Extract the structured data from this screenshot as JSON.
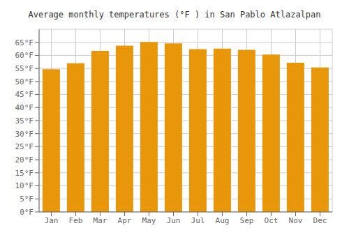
{
  "chart_data": {
    "type": "bar",
    "title": "Average monthly temperatures (°F ) in San Pablo Atlazalpan",
    "categories": [
      "Jan",
      "Feb",
      "Mar",
      "Apr",
      "May",
      "Jun",
      "Jul",
      "Aug",
      "Sep",
      "Oct",
      "Nov",
      "Dec"
    ],
    "values": [
      54.7,
      57.0,
      61.7,
      63.7,
      65.1,
      64.6,
      62.4,
      62.6,
      62.1,
      60.3,
      57.2,
      55.4
    ],
    "color": "#E8960A",
    "ylim": [
      0,
      70
    ],
    "yticks": [
      {
        "value": 0,
        "label": "0°F"
      },
      {
        "value": 5,
        "label": "5°F"
      },
      {
        "value": 10,
        "label": "10°F"
      },
      {
        "value": 15,
        "label": "15°F"
      },
      {
        "value": 20,
        "label": "20°F"
      },
      {
        "value": 25,
        "label": "25°F"
      },
      {
        "value": 30,
        "label": "30°F"
      },
      {
        "value": 35,
        "label": "35°F"
      },
      {
        "value": 40,
        "label": "40°F"
      },
      {
        "value": 45,
        "label": "45°F"
      },
      {
        "value": 50,
        "label": "50°F"
      },
      {
        "value": 55,
        "label": "55°F"
      },
      {
        "value": 60,
        "label": "60°F"
      },
      {
        "value": 65,
        "label": "65°F"
      }
    ],
    "grid": true
  }
}
